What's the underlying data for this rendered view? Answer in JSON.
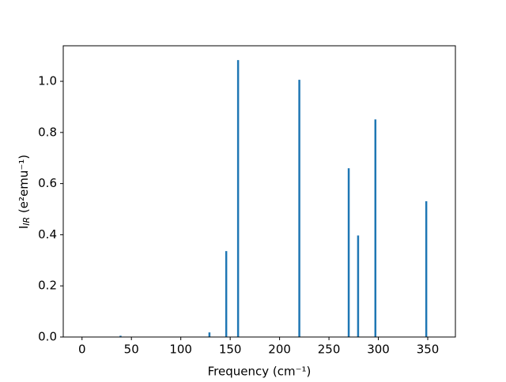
{
  "chart_data": {
    "type": "bar",
    "xlabel": "Frequency (cm⁻¹)",
    "ylabel": [
      "I",
      "IR",
      " (e²emu⁻¹)"
    ],
    "x": [
      39,
      129,
      146,
      158,
      220,
      270,
      279.5,
      297,
      348.5
    ],
    "values": [
      0.005,
      0.018,
      0.336,
      1.083,
      1.006,
      0.66,
      0.397,
      0.851,
      0.531
    ],
    "bar_width": 2,
    "color": "#1f77b4",
    "xlim": [
      -19,
      378
    ],
    "ylim": [
      0,
      1.139
    ],
    "xticks": [
      0,
      50,
      100,
      150,
      200,
      250,
      300,
      350
    ],
    "yticks": [
      {
        "value": 0,
        "label": "0.0"
      },
      0.2,
      0.4,
      0.6,
      0.8,
      {
        "value": 1,
        "label": "1.0"
      }
    ]
  }
}
